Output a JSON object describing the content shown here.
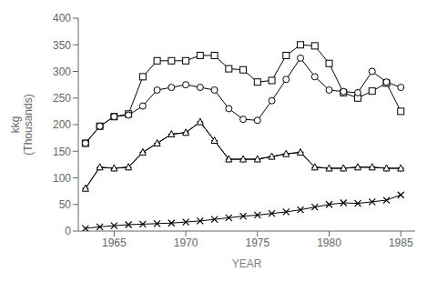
{
  "chart_data": {
    "type": "line",
    "x_label": "YEAR",
    "y_label": "kkg\n(Thousands)",
    "x": [
      1963,
      1964,
      1965,
      1966,
      1967,
      1968,
      1969,
      1970,
      1971,
      1972,
      1973,
      1974,
      1975,
      1976,
      1977,
      1978,
      1979,
      1980,
      1981,
      1982,
      1983,
      1984,
      1985
    ],
    "series": [
      {
        "color": "#000000",
        "marker": "square",
        "values": [
          165,
          197,
          215,
          220,
          290,
          320,
          320,
          320,
          330,
          330,
          305,
          303,
          280,
          283,
          330,
          350,
          348,
          315,
          260,
          250,
          263,
          278,
          225
        ]
      },
      {
        "color": "#000000",
        "marker": "circle",
        "values": [
          165,
          197,
          215,
          218,
          235,
          265,
          270,
          275,
          270,
          265,
          230,
          210,
          208,
          245,
          285,
          325,
          290,
          265,
          262,
          260,
          300,
          280,
          270
        ]
      },
      {
        "color": "#000000",
        "marker": "plus",
        "values": [
          80,
          120,
          118,
          120,
          148,
          165,
          182,
          185,
          205,
          170,
          135,
          135,
          135,
          140,
          145,
          148,
          120,
          118,
          118,
          120,
          120,
          118,
          118
        ]
      },
      {
        "color": "#000000",
        "marker": "triangle",
        "values": [
          80,
          120,
          118,
          120,
          148,
          165,
          182,
          185,
          205,
          170,
          135,
          135,
          135,
          140,
          145,
          148,
          120,
          118,
          118,
          120,
          120,
          118,
          118
        ]
      },
      {
        "color": "#000000",
        "marker": "x",
        "values": [
          5,
          8,
          10,
          12,
          13,
          14,
          15,
          17,
          19,
          22,
          25,
          28,
          30,
          33,
          36,
          40,
          45,
          50,
          53,
          52,
          55,
          58,
          68
        ]
      }
    ],
    "xlim": [
      1962.5,
      1986
    ],
    "ylim": [
      0,
      400
    ],
    "xticks": [
      1965,
      1970,
      1975,
      1980,
      1985
    ],
    "yticks": [
      0,
      50,
      100,
      150,
      200,
      250,
      300,
      350,
      400
    ],
    "grid": false
  }
}
